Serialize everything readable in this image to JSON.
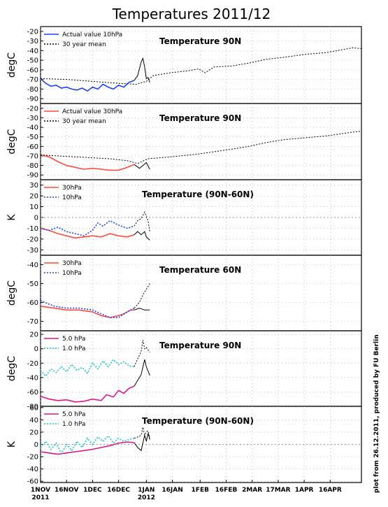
{
  "figure": {
    "title": "Temperatures 2011/12",
    "credit": "plot from 26.12.2011, produced by FU Berlin",
    "x_ticks": [
      "1NOV",
      "16NOV",
      "1DEC",
      "16DEC",
      "1JAN",
      "16JAN",
      "1FEB",
      "16FEB",
      "2MAR",
      "17MAR",
      "1APR",
      "16APR"
    ],
    "x_year_labels": [
      "2011",
      "2012"
    ]
  },
  "colors": {
    "blue": "#1f3fff",
    "red": "#ff4a3a",
    "magenta": "#e0148c",
    "cyan": "#10c8c0",
    "mean": "#000000"
  },
  "chart_data": [
    {
      "type": "line",
      "title": "Temperature 90N",
      "ylabel": "degC",
      "ylim": [
        -95,
        -15
      ],
      "yticks": [
        -90,
        -80,
        -70,
        -60,
        -50,
        -40,
        -30,
        -20
      ],
      "zero_line": false,
      "series": [
        {
          "name": "Actual value 10hPa",
          "color": "#1f3fff",
          "dash": "",
          "x": [
            0,
            3,
            6,
            9,
            12,
            15,
            18,
            21,
            24,
            27,
            30,
            33,
            36,
            39,
            42,
            45,
            48,
            51,
            54
          ],
          "y": [
            -69,
            -74,
            -77,
            -76,
            -79,
            -78,
            -80,
            -81,
            -79,
            -82,
            -78,
            -80,
            -75,
            -78,
            -80,
            -76,
            -78,
            -73,
            -71
          ]
        },
        {
          "name": "",
          "color": "#000000",
          "dash": "",
          "x": [
            54,
            56,
            58,
            59,
            60,
            61,
            62,
            63
          ],
          "y": [
            -71,
            -66,
            -52,
            -48,
            -57,
            -69,
            -68,
            -73
          ]
        },
        {
          "name": "30 year mean",
          "color": "#000000",
          "dash": "2,2",
          "x": [
            0,
            15,
            30,
            45,
            55,
            61,
            65,
            75,
            85,
            91,
            95,
            100,
            110,
            120,
            130,
            140,
            152,
            165,
            180,
            185
          ],
          "y": [
            -69,
            -70,
            -72,
            -74,
            -75,
            -72,
            -66,
            -63,
            -61,
            -59,
            -63,
            -57,
            -56,
            -53,
            -49,
            -47,
            -44,
            -42,
            -37,
            -38
          ]
        }
      ]
    },
    {
      "type": "line",
      "title": "Temperature 90N",
      "ylabel": "degC",
      "ylim": [
        -95,
        -15
      ],
      "yticks": [
        -90,
        -80,
        -70,
        -60,
        -50,
        -40,
        -30,
        -20
      ],
      "zero_line": false,
      "series": [
        {
          "name": "Actual value 30hPa",
          "color": "#ff4a3a",
          "dash": "",
          "x": [
            0,
            5,
            10,
            15,
            20,
            25,
            30,
            35,
            40,
            45,
            50,
            54
          ],
          "y": [
            -69,
            -71,
            -76,
            -80,
            -82,
            -84,
            -83,
            -84,
            -85,
            -85,
            -82,
            -79
          ]
        },
        {
          "name": "",
          "color": "#000000",
          "dash": "",
          "x": [
            54,
            57,
            59,
            61,
            63
          ],
          "y": [
            -79,
            -83,
            -80,
            -77,
            -84
          ]
        },
        {
          "name": "30 year mean",
          "color": "#000000",
          "dash": "2,2",
          "x": [
            0,
            20,
            40,
            50,
            56,
            62,
            75,
            91,
            110,
            120,
            130,
            140,
            152,
            165,
            180,
            185
          ],
          "y": [
            -69,
            -71,
            -73,
            -75,
            -78,
            -73,
            -71,
            -68,
            -63,
            -60,
            -56,
            -53,
            -51,
            -49,
            -45,
            -44
          ]
        }
      ]
    },
    {
      "type": "line",
      "title": "Temperature (90N-60N)",
      "ylabel": "K",
      "ylim": [
        -35,
        35
      ],
      "yticks": [
        -30,
        -20,
        -10,
        0,
        10,
        20,
        30
      ],
      "zero_line": true,
      "series": [
        {
          "name": "30hPa",
          "color": "#ff4a3a",
          "dash": "",
          "x": [
            0,
            5,
            10,
            15,
            20,
            25,
            30,
            35,
            40,
            45,
            50,
            54
          ],
          "y": [
            -10,
            -12,
            -15,
            -17,
            -19,
            -18,
            -17,
            -18,
            -15,
            -17,
            -18,
            -16
          ]
        },
        {
          "name": "10hPa",
          "color": "#1f3fff",
          "dash": "2,2",
          "x": [
            0,
            5,
            10,
            15,
            20,
            25,
            30,
            33,
            36,
            40,
            45,
            50,
            54
          ],
          "y": [
            -10,
            -12,
            -9,
            -13,
            -15,
            -17,
            -12,
            -5,
            -8,
            -3,
            -7,
            -10,
            -8
          ]
        },
        {
          "name": "",
          "color": "#000000",
          "dash": "",
          "x": [
            54,
            56,
            58,
            60,
            61,
            63
          ],
          "y": [
            -16,
            -13,
            -16,
            -13,
            -18,
            -21
          ]
        },
        {
          "name": "",
          "color": "#000000",
          "dash": "2,2",
          "x": [
            54,
            56,
            58,
            60,
            61,
            62,
            63
          ],
          "y": [
            -8,
            -3,
            -1,
            5,
            1,
            -3,
            -13
          ]
        }
      ]
    },
    {
      "type": "line",
      "title": "Temperature 60N",
      "ylabel": "degC",
      "ylim": [
        -75,
        -35
      ],
      "yticks": [
        -70,
        -60,
        -50,
        -40
      ],
      "zero_line": false,
      "series": [
        {
          "name": "30hPa",
          "color": "#ff4a3a",
          "dash": "",
          "x": [
            0,
            8,
            15,
            22,
            30,
            35,
            40,
            45,
            48,
            52,
            54
          ],
          "y": [
            -62,
            -63,
            -64,
            -64,
            -65,
            -67,
            -68,
            -67,
            -66,
            -64,
            -64
          ]
        },
        {
          "name": "10hPa",
          "color": "#1f3fff",
          "dash": "2,2",
          "x": [
            0,
            8,
            15,
            22,
            30,
            35,
            40,
            45,
            50,
            54
          ],
          "y": [
            -59,
            -62,
            -63,
            -63,
            -64,
            -66,
            -68,
            -68,
            -65,
            -63
          ]
        },
        {
          "name": "",
          "color": "#000000",
          "dash": "",
          "x": [
            54,
            57,
            60,
            63
          ],
          "y": [
            -64,
            -63,
            -64,
            -64
          ]
        },
        {
          "name": "",
          "color": "#000000",
          "dash": "2,2",
          "x": [
            54,
            57,
            59,
            61,
            63
          ],
          "y": [
            -63,
            -60,
            -56,
            -53,
            -50
          ]
        }
      ]
    },
    {
      "type": "line",
      "title": "Temperature 90N",
      "ylabel": "degC",
      "ylim": [
        -80,
        25
      ],
      "yticks": [
        -80,
        -60,
        -40,
        -20,
        0,
        20
      ],
      "zero_line": false,
      "series": [
        {
          "name": "5.0 hPa",
          "color": "#e0148c",
          "dash": "",
          "x": [
            0,
            5,
            10,
            15,
            20,
            25,
            30,
            35,
            38,
            42,
            45,
            48,
            51,
            54
          ],
          "y": [
            -66,
            -70,
            -72,
            -71,
            -74,
            -73,
            -70,
            -72,
            -64,
            -67,
            -58,
            -62,
            -55,
            -52
          ]
        },
        {
          "name": "1.0 hPa",
          "color": "#10c8c0",
          "dash": "2,2",
          "x": [
            0,
            3,
            6,
            9,
            12,
            15,
            18,
            21,
            24,
            27,
            30,
            33,
            36,
            39,
            42,
            45,
            48,
            51,
            54
          ],
          "y": [
            -30,
            -38,
            -28,
            -33,
            -25,
            -32,
            -22,
            -30,
            -26,
            -34,
            -20,
            -28,
            -17,
            -25,
            -15,
            -22,
            -18,
            -24,
            -25
          ]
        },
        {
          "name": "",
          "color": "#000000",
          "dash": "",
          "x": [
            54,
            56,
            58,
            60,
            61,
            63
          ],
          "y": [
            -52,
            -44,
            -36,
            -15,
            -25,
            -37
          ]
        },
        {
          "name": "",
          "color": "#000000",
          "dash": "2,2",
          "x": [
            54,
            56,
            58,
            59,
            60,
            61,
            63
          ],
          "y": [
            -25,
            -14,
            -4,
            12,
            0,
            2,
            -5
          ]
        }
      ]
    },
    {
      "type": "line",
      "title": "Temperature (90N-60N)",
      "ylabel": "K",
      "ylim": [
        -62,
        62
      ],
      "yticks": [
        -60,
        -40,
        -20,
        0,
        20,
        40,
        60
      ],
      "zero_line": true,
      "series": [
        {
          "name": "5.0 hPa",
          "color": "#e0148c",
          "dash": "",
          "x": [
            0,
            5,
            10,
            15,
            20,
            25,
            30,
            35,
            40,
            45,
            50,
            54
          ],
          "y": [
            -12,
            -14,
            -16,
            -14,
            -12,
            -10,
            -8,
            -5,
            -2,
            2,
            4,
            3
          ]
        },
        {
          "name": "1.0 hPa",
          "color": "#10c8c0",
          "dash": "2,2",
          "x": [
            0,
            3,
            6,
            9,
            12,
            15,
            18,
            21,
            24,
            27,
            30,
            33,
            36,
            39,
            42,
            45,
            48,
            51,
            54
          ],
          "y": [
            -5,
            5,
            -8,
            2,
            -15,
            0,
            -10,
            5,
            -5,
            10,
            0,
            12,
            5,
            14,
            2,
            10,
            5,
            8,
            10
          ]
        },
        {
          "name": "",
          "color": "#000000",
          "dash": "",
          "x": [
            54,
            56,
            58,
            60,
            61,
            62,
            63
          ],
          "y": [
            3,
            -5,
            -10,
            15,
            5,
            18,
            8
          ]
        },
        {
          "name": "",
          "color": "#000000",
          "dash": "2,2",
          "x": [
            54,
            56,
            58,
            59,
            60,
            61,
            62,
            63
          ],
          "y": [
            10,
            12,
            15,
            28,
            15,
            20,
            22,
            10
          ]
        }
      ]
    }
  ]
}
